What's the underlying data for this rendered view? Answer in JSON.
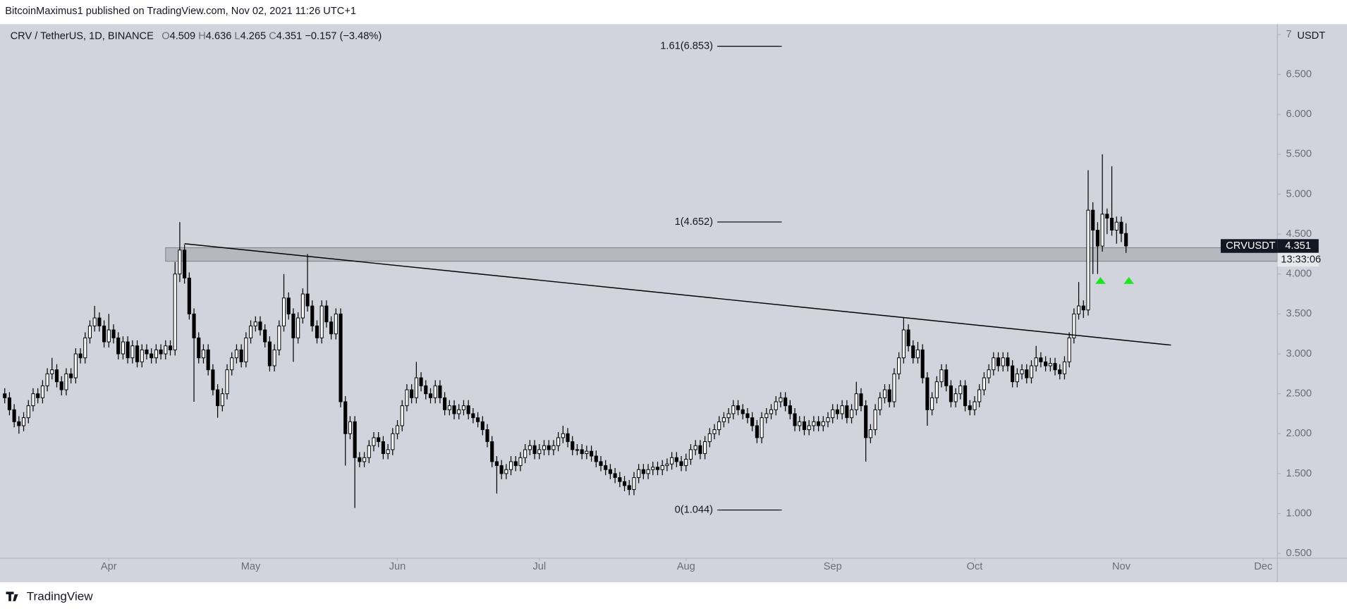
{
  "chart_data": {
    "type": "candlestick",
    "publisher": "BitcoinMaximus1 published on TradingView.com, Nov 02, 2021 11:26 UTC+1",
    "symbol": "CRV / TetherUS, 1D, BINANCE",
    "ohlc_letters": [
      "O",
      "H",
      "L",
      "C"
    ],
    "change": "−0.157 (−3.48%)",
    "ticker": "CRVUSDT",
    "countdown": "13:33:06",
    "unit": "USDT",
    "footer": "TradingView",
    "up_color": "#ffffff",
    "down_color": "#000000",
    "line_color": "#000000",
    "xlim": [
      -1,
      269
    ],
    "xticks": [
      {
        "value": 22,
        "label": "Apr"
      },
      {
        "value": 52,
        "label": "May"
      },
      {
        "value": 83,
        "label": "Jun"
      },
      {
        "value": 113,
        "label": "Jul"
      },
      {
        "value": 144,
        "label": "Aug"
      },
      {
        "value": 175,
        "label": "Sep"
      },
      {
        "value": 205,
        "label": "Oct"
      },
      {
        "value": 236,
        "label": "Nov"
      },
      {
        "value": 266,
        "label": "Dec"
      }
    ],
    "ylim": [
      0.44,
      7.13
    ],
    "yticks": [
      {
        "value": 0.5,
        "label": "0.500"
      },
      {
        "value": 1,
        "label": "1.000"
      },
      {
        "value": 1.5,
        "label": "1.500"
      },
      {
        "value": 2,
        "label": "2.000"
      },
      {
        "value": 2.5,
        "label": "2.500"
      },
      {
        "value": 3,
        "label": "3.000"
      },
      {
        "value": 3.5,
        "label": "3.500"
      },
      {
        "value": 4,
        "label": "4.000"
      },
      {
        "value": 4.5,
        "label": "4.500"
      },
      {
        "value": 5,
        "label": "5.000"
      },
      {
        "value": 5.5,
        "label": "5.500"
      },
      {
        "value": 6,
        "label": "6.000"
      },
      {
        "value": 6.5,
        "label": "6.500"
      },
      7
    ],
    "grid": false,
    "fib_levels": [
      {
        "value": 6.853,
        "label": "1.61(6.853)"
      },
      {
        "value": 4.652,
        "label": "1(4.652)"
      },
      {
        "value": 1.044,
        "label": "0(1.044)"
      }
    ],
    "zone": {
      "x0": 34,
      "low": 4.16,
      "high": 4.33
    },
    "trendline": {
      "x": [
        38,
        246.5
      ],
      "y": [
        4.38,
        3.11
      ]
    },
    "arrows": {
      "x": [
        231.6,
        237.6
      ],
      "y": [
        3.92,
        3.92
      ],
      "color": "#1ee61e"
    },
    "ohlc": [
      [
        2.5,
        2.57,
        2.38,
        2.45
      ],
      [
        2.45,
        2.52,
        2.23,
        2.3
      ],
      [
        2.3,
        2.37,
        2.08,
        2.15
      ],
      [
        2.15,
        2.22,
        2.0,
        2.1
      ],
      [
        2.1,
        2.27,
        2.03,
        2.2
      ],
      [
        2.2,
        2.42,
        2.13,
        2.35
      ],
      [
        2.35,
        2.57,
        2.28,
        2.5
      ],
      [
        2.5,
        2.57,
        2.38,
        2.45
      ],
      [
        2.45,
        2.67,
        2.38,
        2.6
      ],
      [
        2.6,
        2.82,
        2.53,
        2.75
      ],
      [
        2.75,
        2.95,
        2.68,
        2.8
      ],
      [
        2.8,
        2.87,
        2.58,
        2.65
      ],
      [
        2.65,
        2.72,
        2.48,
        2.55
      ],
      [
        2.55,
        2.82,
        2.48,
        2.75
      ],
      [
        2.75,
        2.82,
        2.63,
        2.7
      ],
      [
        2.7,
        3.07,
        2.63,
        3.0
      ],
      [
        3.0,
        3.07,
        2.88,
        2.95
      ],
      [
        2.95,
        3.27,
        2.88,
        3.2
      ],
      [
        3.2,
        3.42,
        3.13,
        3.35
      ],
      [
        3.35,
        3.6,
        3.28,
        3.45
      ],
      [
        3.45,
        3.52,
        3.28,
        3.35
      ],
      [
        3.35,
        3.42,
        3.08,
        3.15
      ],
      [
        3.15,
        3.5,
        3.08,
        3.3
      ],
      [
        3.3,
        3.37,
        3.13,
        3.2
      ],
      [
        3.2,
        3.27,
        2.93,
        3.0
      ],
      [
        3.0,
        3.22,
        2.93,
        3.15
      ],
      [
        3.15,
        3.22,
        2.88,
        2.95
      ],
      [
        2.95,
        3.17,
        2.88,
        3.1
      ],
      [
        3.1,
        3.17,
        2.83,
        2.9
      ],
      [
        2.9,
        3.12,
        2.83,
        3.05
      ],
      [
        3.05,
        3.12,
        2.93,
        3.0
      ],
      [
        3.0,
        3.07,
        2.88,
        2.95
      ],
      [
        2.95,
        3.12,
        2.88,
        3.05
      ],
      [
        3.05,
        3.12,
        2.93,
        3.0
      ],
      [
        3.0,
        3.17,
        2.93,
        3.1
      ],
      [
        3.1,
        3.17,
        2.98,
        3.05
      ],
      [
        3.05,
        4.15,
        2.98,
        4.0
      ],
      [
        4.0,
        4.65,
        3.9,
        4.3
      ],
      [
        4.3,
        4.37,
        3.88,
        3.95
      ],
      [
        3.95,
        4.02,
        3.43,
        3.5
      ],
      [
        3.5,
        3.57,
        2.4,
        3.2
      ],
      [
        3.2,
        3.27,
        2.88,
        2.95
      ],
      [
        2.95,
        3.12,
        2.88,
        3.05
      ],
      [
        3.05,
        3.12,
        2.73,
        2.8
      ],
      [
        2.8,
        2.87,
        2.48,
        2.55
      ],
      [
        2.55,
        2.62,
        2.2,
        2.35
      ],
      [
        2.35,
        2.57,
        2.28,
        2.5
      ],
      [
        2.5,
        2.87,
        2.43,
        2.8
      ],
      [
        2.8,
        3.02,
        2.73,
        2.95
      ],
      [
        2.95,
        3.12,
        2.88,
        3.05
      ],
      [
        3.05,
        3.12,
        2.83,
        2.9
      ],
      [
        2.9,
        3.27,
        2.83,
        3.2
      ],
      [
        3.2,
        3.42,
        3.13,
        3.35
      ],
      [
        3.35,
        3.47,
        3.28,
        3.4
      ],
      [
        3.4,
        3.47,
        3.23,
        3.3
      ],
      [
        3.3,
        3.37,
        3.08,
        3.15
      ],
      [
        3.15,
        3.22,
        2.78,
        2.85
      ],
      [
        2.85,
        3.12,
        2.78,
        3.05
      ],
      [
        3.05,
        3.42,
        2.98,
        3.35
      ],
      [
        3.35,
        4.0,
        3.28,
        3.7
      ],
      [
        3.7,
        3.77,
        3.43,
        3.5
      ],
      [
        3.5,
        3.57,
        2.9,
        3.2
      ],
      [
        3.2,
        3.52,
        3.13,
        3.45
      ],
      [
        3.45,
        3.82,
        3.38,
        3.75
      ],
      [
        3.75,
        4.25,
        3.53,
        3.6
      ],
      [
        3.6,
        3.67,
        3.28,
        3.35
      ],
      [
        3.35,
        3.42,
        3.13,
        3.2
      ],
      [
        3.2,
        3.67,
        3.13,
        3.6
      ],
      [
        3.6,
        3.67,
        3.33,
        3.4
      ],
      [
        3.4,
        3.47,
        3.18,
        3.25
      ],
      [
        3.25,
        3.57,
        3.18,
        3.5
      ],
      [
        3.5,
        3.57,
        2.33,
        2.4
      ],
      [
        2.4,
        2.47,
        1.6,
        2.0
      ],
      [
        2.0,
        2.22,
        1.93,
        2.15
      ],
      [
        2.15,
        2.22,
        1.07,
        1.7
      ],
      [
        1.7,
        1.77,
        1.58,
        1.65
      ],
      [
        1.65,
        1.77,
        1.58,
        1.7
      ],
      [
        1.7,
        1.92,
        1.63,
        1.85
      ],
      [
        1.85,
        2.02,
        1.78,
        1.95
      ],
      [
        1.95,
        2.02,
        1.83,
        1.9
      ],
      [
        1.9,
        1.97,
        1.68,
        1.75
      ],
      [
        1.75,
        1.87,
        1.68,
        1.8
      ],
      [
        1.8,
        2.07,
        1.73,
        2.0
      ],
      [
        2.0,
        2.17,
        1.93,
        2.1
      ],
      [
        2.1,
        2.42,
        2.03,
        2.35
      ],
      [
        2.35,
        2.62,
        2.28,
        2.55
      ],
      [
        2.55,
        2.62,
        2.38,
        2.45
      ],
      [
        2.45,
        2.9,
        2.38,
        2.7
      ],
      [
        2.7,
        2.77,
        2.53,
        2.6
      ],
      [
        2.6,
        2.67,
        2.43,
        2.5
      ],
      [
        2.5,
        2.57,
        2.38,
        2.45
      ],
      [
        2.45,
        2.67,
        2.38,
        2.6
      ],
      [
        2.6,
        2.67,
        2.38,
        2.45
      ],
      [
        2.45,
        2.52,
        2.23,
        2.3
      ],
      [
        2.3,
        2.42,
        2.23,
        2.35
      ],
      [
        2.35,
        2.42,
        2.18,
        2.25
      ],
      [
        2.25,
        2.37,
        2.18,
        2.3
      ],
      [
        2.3,
        2.42,
        2.23,
        2.35
      ],
      [
        2.35,
        2.42,
        2.18,
        2.25
      ],
      [
        2.25,
        2.32,
        2.13,
        2.2
      ],
      [
        2.2,
        2.27,
        2.08,
        2.15
      ],
      [
        2.15,
        2.22,
        1.98,
        2.05
      ],
      [
        2.05,
        2.12,
        1.83,
        1.9
      ],
      [
        1.9,
        1.97,
        1.58,
        1.65
      ],
      [
        1.65,
        1.72,
        1.25,
        1.6
      ],
      [
        1.6,
        1.67,
        1.43,
        1.5
      ],
      [
        1.5,
        1.62,
        1.43,
        1.55
      ],
      [
        1.55,
        1.72,
        1.48,
        1.65
      ],
      [
        1.65,
        1.72,
        1.53,
        1.6
      ],
      [
        1.6,
        1.77,
        1.53,
        1.7
      ],
      [
        1.7,
        1.87,
        1.63,
        1.8
      ],
      [
        1.8,
        1.92,
        1.73,
        1.85
      ],
      [
        1.85,
        1.92,
        1.68,
        1.75
      ],
      [
        1.75,
        1.87,
        1.68,
        1.8
      ],
      [
        1.8,
        1.92,
        1.73,
        1.85
      ],
      [
        1.85,
        1.92,
        1.73,
        1.8
      ],
      [
        1.8,
        1.92,
        1.73,
        1.85
      ],
      [
        1.85,
        2.02,
        1.78,
        1.95
      ],
      [
        1.95,
        2.1,
        1.88,
        2.0
      ],
      [
        2.0,
        2.07,
        1.83,
        1.9
      ],
      [
        1.9,
        1.97,
        1.73,
        1.8
      ],
      [
        1.8,
        1.87,
        1.73,
        1.8
      ],
      [
        1.8,
        1.87,
        1.68,
        1.75
      ],
      [
        1.75,
        1.85,
        1.68,
        1.78
      ],
      [
        1.78,
        1.85,
        1.65,
        1.72
      ],
      [
        1.72,
        1.79,
        1.58,
        1.65
      ],
      [
        1.65,
        1.72,
        1.53,
        1.6
      ],
      [
        1.6,
        1.67,
        1.48,
        1.55
      ],
      [
        1.55,
        1.62,
        1.43,
        1.5
      ],
      [
        1.5,
        1.57,
        1.38,
        1.45
      ],
      [
        1.45,
        1.52,
        1.33,
        1.4
      ],
      [
        1.4,
        1.47,
        1.28,
        1.35
      ],
      [
        1.35,
        1.42,
        1.23,
        1.3
      ],
      [
        1.3,
        1.52,
        1.23,
        1.45
      ],
      [
        1.45,
        1.62,
        1.38,
        1.55
      ],
      [
        1.55,
        1.62,
        1.43,
        1.5
      ],
      [
        1.5,
        1.62,
        1.43,
        1.55
      ],
      [
        1.55,
        1.65,
        1.48,
        1.58
      ],
      [
        1.58,
        1.65,
        1.48,
        1.55
      ],
      [
        1.55,
        1.67,
        1.48,
        1.6
      ],
      [
        1.6,
        1.69,
        1.53,
        1.62
      ],
      [
        1.62,
        1.77,
        1.55,
        1.7
      ],
      [
        1.7,
        1.77,
        1.58,
        1.65
      ],
      [
        1.65,
        1.72,
        1.53,
        1.6
      ],
      [
        1.6,
        1.75,
        1.53,
        1.68
      ],
      [
        1.68,
        1.87,
        1.61,
        1.8
      ],
      [
        1.8,
        1.92,
        1.73,
        1.85
      ],
      [
        1.85,
        1.92,
        1.68,
        1.75
      ],
      [
        1.75,
        1.97,
        1.68,
        1.9
      ],
      [
        1.9,
        2.07,
        1.83,
        2.0
      ],
      [
        2.0,
        2.12,
        1.93,
        2.05
      ],
      [
        2.05,
        2.22,
        1.98,
        2.15
      ],
      [
        2.15,
        2.27,
        2.08,
        2.2
      ],
      [
        2.2,
        2.32,
        2.13,
        2.25
      ],
      [
        2.25,
        2.42,
        2.18,
        2.35
      ],
      [
        2.35,
        2.42,
        2.23,
        2.3
      ],
      [
        2.3,
        2.37,
        2.18,
        2.25
      ],
      [
        2.25,
        2.32,
        2.13,
        2.2
      ],
      [
        2.2,
        2.27,
        2.03,
        2.1
      ],
      [
        2.1,
        2.17,
        1.88,
        1.95
      ],
      [
        1.95,
        2.27,
        1.88,
        2.2
      ],
      [
        2.2,
        2.32,
        2.13,
        2.25
      ],
      [
        2.25,
        2.37,
        2.18,
        2.3
      ],
      [
        2.3,
        2.47,
        2.23,
        2.4
      ],
      [
        2.4,
        2.52,
        2.33,
        2.45
      ],
      [
        2.45,
        2.52,
        2.28,
        2.35
      ],
      [
        2.35,
        2.42,
        2.18,
        2.25
      ],
      [
        2.25,
        2.32,
        2.03,
        2.1
      ],
      [
        2.1,
        2.22,
        2.03,
        2.15
      ],
      [
        2.15,
        2.22,
        1.98,
        2.05
      ],
      [
        2.05,
        2.17,
        1.98,
        2.1
      ],
      [
        2.1,
        2.22,
        2.03,
        2.15
      ],
      [
        2.15,
        2.22,
        2.03,
        2.1
      ],
      [
        2.1,
        2.22,
        2.03,
        2.15
      ],
      [
        2.15,
        2.27,
        2.08,
        2.2
      ],
      [
        2.2,
        2.37,
        2.13,
        2.3
      ],
      [
        2.3,
        2.37,
        2.18,
        2.25
      ],
      [
        2.25,
        2.42,
        2.18,
        2.35
      ],
      [
        2.35,
        2.42,
        2.13,
        2.2
      ],
      [
        2.2,
        2.37,
        2.13,
        2.3
      ],
      [
        2.3,
        2.65,
        2.23,
        2.5
      ],
      [
        2.5,
        2.57,
        2.28,
        2.35
      ],
      [
        2.35,
        2.42,
        1.65,
        1.95
      ],
      [
        1.95,
        2.12,
        1.88,
        2.05
      ],
      [
        2.05,
        2.37,
        1.98,
        2.3
      ],
      [
        2.3,
        2.52,
        2.23,
        2.45
      ],
      [
        2.45,
        2.62,
        2.38,
        2.55
      ],
      [
        2.55,
        2.62,
        2.33,
        2.4
      ],
      [
        2.4,
        2.82,
        2.33,
        2.75
      ],
      [
        2.75,
        3.02,
        2.68,
        2.95
      ],
      [
        2.95,
        3.45,
        2.88,
        3.3
      ],
      [
        3.3,
        3.37,
        3.03,
        3.1
      ],
      [
        3.1,
        3.17,
        2.88,
        2.95
      ],
      [
        2.95,
        3.15,
        2.88,
        3.05
      ],
      [
        3.05,
        3.12,
        2.63,
        2.7
      ],
      [
        2.7,
        2.77,
        2.1,
        2.3
      ],
      [
        2.3,
        2.52,
        2.23,
        2.45
      ],
      [
        2.45,
        2.72,
        2.38,
        2.65
      ],
      [
        2.65,
        2.87,
        2.58,
        2.8
      ],
      [
        2.8,
        2.87,
        2.53,
        2.6
      ],
      [
        2.6,
        2.67,
        2.33,
        2.4
      ],
      [
        2.4,
        2.57,
        2.33,
        2.5
      ],
      [
        2.5,
        2.67,
        2.43,
        2.6
      ],
      [
        2.6,
        2.67,
        2.28,
        2.35
      ],
      [
        2.35,
        2.42,
        2.23,
        2.3
      ],
      [
        2.3,
        2.47,
        2.23,
        2.4
      ],
      [
        2.4,
        2.62,
        2.33,
        2.55
      ],
      [
        2.55,
        2.77,
        2.48,
        2.7
      ],
      [
        2.7,
        2.87,
        2.63,
        2.8
      ],
      [
        2.8,
        3.02,
        2.73,
        2.95
      ],
      [
        2.95,
        3.02,
        2.78,
        2.85
      ],
      [
        2.85,
        3.02,
        2.78,
        2.95
      ],
      [
        2.95,
        3.02,
        2.78,
        2.85
      ],
      [
        2.85,
        2.92,
        2.58,
        2.65
      ],
      [
        2.65,
        2.82,
        2.58,
        2.75
      ],
      [
        2.75,
        2.87,
        2.68,
        2.8
      ],
      [
        2.8,
        2.87,
        2.63,
        2.7
      ],
      [
        2.7,
        2.92,
        2.63,
        2.85
      ],
      [
        2.85,
        3.1,
        2.78,
        2.95
      ],
      [
        2.95,
        3.02,
        2.83,
        2.9
      ],
      [
        2.9,
        2.97,
        2.78,
        2.85
      ],
      [
        2.85,
        2.95,
        2.78,
        2.88
      ],
      [
        2.88,
        2.95,
        2.73,
        2.8
      ],
      [
        2.8,
        2.87,
        2.68,
        2.75
      ],
      [
        2.75,
        2.97,
        2.68,
        2.9
      ],
      [
        2.9,
        3.27,
        2.83,
        3.2
      ],
      [
        3.2,
        3.57,
        3.13,
        3.5
      ],
      [
        3.5,
        3.9,
        3.43,
        3.6
      ],
      [
        3.6,
        3.67,
        3.45,
        3.55
      ],
      [
        3.55,
        5.3,
        3.48,
        4.8
      ],
      [
        4.8,
        4.9,
        4.0,
        4.55
      ],
      [
        4.55,
        4.65,
        4.0,
        4.35
      ],
      [
        4.35,
        5.5,
        4.28,
        4.75
      ],
      [
        4.75,
        4.82,
        4.5,
        4.7
      ],
      [
        4.7,
        5.35,
        4.48,
        4.55
      ],
      [
        4.55,
        4.72,
        4.38,
        4.65
      ],
      [
        4.65,
        4.72,
        4.4,
        4.509
      ],
      [
        4.509,
        4.636,
        4.265,
        4.351
      ]
    ]
  }
}
